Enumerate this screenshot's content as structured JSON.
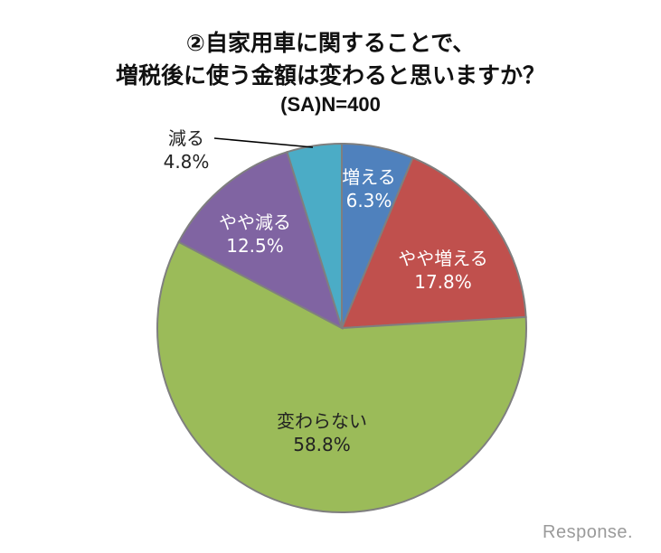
{
  "header": {
    "title_line1": "②自家用車に関することで、",
    "title_line2": "増税後に使う金額は変わると思いますか？",
    "subtitle": "(SA)N=400"
  },
  "watermark": {
    "text": "Response."
  },
  "chart_data": {
    "type": "pie",
    "title": "②自家用車に関することで、増税後に使う金額は変わると思いますか？",
    "subtitle": "(SA)N=400",
    "start_angle": "12 o'clock, clockwise",
    "slices": [
      {
        "label": "増える",
        "value": 6.3,
        "display": "6.3%",
        "color": "#4F81BD"
      },
      {
        "label": "やや増える",
        "value": 17.8,
        "display": "17.8%",
        "color": "#C0504D"
      },
      {
        "label": "変わらない",
        "value": 58.8,
        "display": "58.8%",
        "color": "#9BBB59"
      },
      {
        "label": "やや減る",
        "value": 12.5,
        "display": "12.5%",
        "color": "#8064A2"
      },
      {
        "label": "減る",
        "value": 4.8,
        "display": "4.8%",
        "color": "#4BACC6"
      }
    ],
    "categories": [
      "増える",
      "やや増える",
      "変わらない",
      "やや減る",
      "減る"
    ],
    "values": [
      6.3,
      17.8,
      58.8,
      12.5,
      4.8
    ],
    "legend": "none (data labels on slices)"
  }
}
